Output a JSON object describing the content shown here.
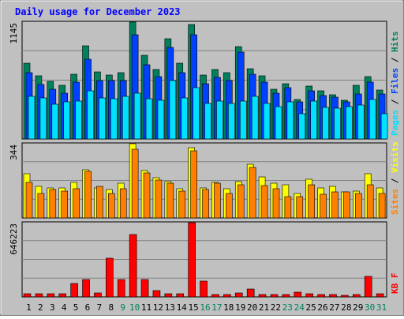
{
  "title": "Daily usage for December 2023",
  "chart_data": [
    {
      "type": "bar",
      "panel": "requests",
      "ylabel_max": "1145",
      "ylim": [
        0,
        1145
      ],
      "legend": [
        "Pages",
        "Files",
        "Hits"
      ],
      "colors": {
        "Hits": "#00805c",
        "Files": "#0040ff",
        "Pages": "#00e0ff"
      },
      "categories": [
        "1",
        "2",
        "3",
        "4",
        "5",
        "6",
        "7",
        "8",
        "9",
        "10",
        "11",
        "12",
        "13",
        "14",
        "15",
        "16",
        "17",
        "18",
        "19",
        "20",
        "21",
        "22",
        "23",
        "24",
        "25",
        "26",
        "27",
        "28",
        "29",
        "30",
        "31"
      ],
      "series": [
        {
          "name": "Hits",
          "values": [
            740,
            620,
            565,
            525,
            635,
            910,
            660,
            630,
            650,
            1145,
            822,
            680,
            985,
            740,
            1120,
            630,
            680,
            650,
            905,
            685,
            620,
            490,
            545,
            385,
            515,
            470,
            435,
            380,
            525,
            610,
            480
          ]
        },
        {
          "name": "Files",
          "values": [
            650,
            535,
            485,
            445,
            555,
            780,
            570,
            570,
            575,
            1025,
            725,
            610,
            900,
            650,
            1020,
            545,
            600,
            575,
            850,
            635,
            560,
            445,
            500,
            360,
            475,
            425,
            410,
            360,
            440,
            555,
            440
          ]
        },
        {
          "name": "Pages",
          "values": [
            420,
            405,
            340,
            365,
            375,
            470,
            400,
            395,
            420,
            450,
            395,
            380,
            570,
            400,
            505,
            345,
            375,
            345,
            370,
            420,
            345,
            315,
            365,
            250,
            375,
            310,
            300,
            320,
            335,
            385,
            250
          ]
        }
      ]
    },
    {
      "type": "bar",
      "panel": "visitors",
      "ylabel_max": "344",
      "ylim": [
        0,
        344
      ],
      "legend": [
        "Sites",
        "Visits"
      ],
      "colors": {
        "Visits": "#ffff00",
        "Sites": "#ff8000"
      },
      "categories": [
        "1",
        "2",
        "3",
        "4",
        "5",
        "6",
        "7",
        "8",
        "9",
        "10",
        "11",
        "12",
        "13",
        "14",
        "15",
        "16",
        "17",
        "18",
        "19",
        "20",
        "21",
        "22",
        "23",
        "24",
        "25",
        "26",
        "27",
        "28",
        "29",
        "30",
        "31"
      ],
      "series": [
        {
          "name": "Visits",
          "values": [
            205,
            145,
            140,
            140,
            165,
            225,
            140,
            130,
            160,
            344,
            220,
            185,
            170,
            135,
            325,
            140,
            165,
            135,
            170,
            250,
            190,
            160,
            155,
            115,
            180,
            140,
            145,
            120,
            125,
            205,
            140
          ]
        },
        {
          "name": "Sites",
          "values": [
            165,
            115,
            130,
            125,
            135,
            215,
            145,
            115,
            135,
            320,
            210,
            175,
            160,
            125,
            310,
            130,
            160,
            115,
            155,
            235,
            150,
            135,
            100,
            100,
            155,
            110,
            120,
            120,
            115,
            155,
            115
          ]
        }
      ]
    },
    {
      "type": "bar",
      "panel": "kbytes",
      "ylabel_max": "646223",
      "ylim": [
        0,
        646223
      ],
      "legend": [
        "KB F"
      ],
      "colors": {
        "KB F": "#ff0000"
      },
      "categories": [
        "1",
        "2",
        "3",
        "4",
        "5",
        "6",
        "7",
        "8",
        "9",
        "10",
        "11",
        "12",
        "13",
        "14",
        "15",
        "16",
        "17",
        "18",
        "19",
        "20",
        "21",
        "22",
        "23",
        "24",
        "25",
        "26",
        "27",
        "28",
        "29",
        "30",
        "31"
      ],
      "series": [
        {
          "name": "KB F",
          "values": [
            25000,
            25000,
            25000,
            25000,
            115000,
            150000,
            35000,
            335000,
            148000,
            540000,
            150000,
            55000,
            25000,
            25000,
            646223,
            140000,
            20000,
            20000,
            35000,
            70000,
            20000,
            20000,
            20000,
            40000,
            30000,
            20000,
            20000,
            15000,
            20000,
            180000,
            25000
          ]
        }
      ]
    }
  ],
  "weekend_days": [
    "9",
    "10",
    "16",
    "17",
    "23",
    "24",
    "30",
    "31"
  ]
}
